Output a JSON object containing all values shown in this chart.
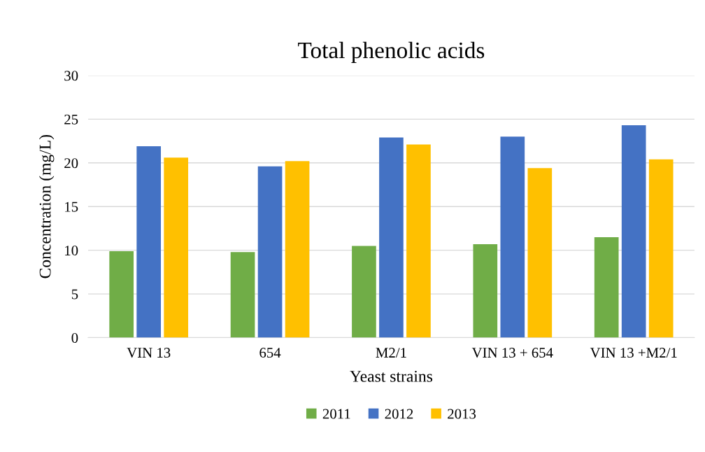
{
  "chart_data": {
    "type": "bar",
    "title": "Total phenolic acids",
    "xlabel": "Yeast strains",
    "ylabel": "Concentration (mg/L)",
    "categories": [
      "VIN 13",
      "654",
      "M2/1",
      "VIN 13 + 654",
      "VIN 13 +M2/1"
    ],
    "series": [
      {
        "name": "2011",
        "color": "#70ad47",
        "values": [
          9.9,
          9.8,
          10.5,
          10.7,
          11.5
        ]
      },
      {
        "name": "2012",
        "color": "#4472c4",
        "values": [
          21.9,
          19.6,
          22.9,
          23.0,
          24.3
        ]
      },
      {
        "name": "2013",
        "color": "#ffc000",
        "values": [
          20.6,
          20.2,
          22.1,
          19.4,
          20.4
        ]
      }
    ],
    "ylim": [
      0,
      30
    ],
    "yticks": [
      0,
      5,
      10,
      15,
      20,
      25,
      30
    ],
    "grid": "y",
    "legend": "bottom"
  }
}
